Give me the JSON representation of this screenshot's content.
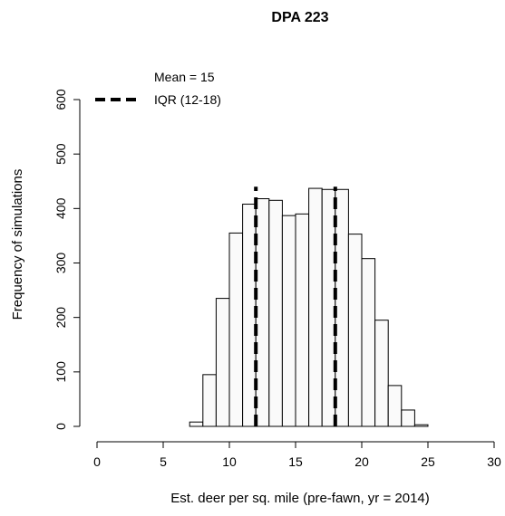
{
  "chart_data": {
    "type": "bar",
    "title": "DPA 223",
    "xlabel": "Est. deer per sq. mile (pre-fawn, yr = 2014)",
    "ylabel": "Frequency of simulations",
    "xlim": [
      0,
      30
    ],
    "ylim": [
      0,
      600
    ],
    "x_ticks": [
      "0",
      "5",
      "10",
      "15",
      "20",
      "25",
      "30"
    ],
    "y_ticks": [
      "0",
      "100",
      "200",
      "300",
      "400",
      "500",
      "600"
    ],
    "bin_width": 1,
    "bins": [
      {
        "x0": 7,
        "x1": 8,
        "count": 8
      },
      {
        "x0": 8,
        "x1": 9,
        "count": 95
      },
      {
        "x0": 9,
        "x1": 10,
        "count": 235
      },
      {
        "x0": 10,
        "x1": 11,
        "count": 355
      },
      {
        "x0": 11,
        "x1": 12,
        "count": 408
      },
      {
        "x0": 12,
        "x1": 13,
        "count": 418
      },
      {
        "x0": 13,
        "x1": 14,
        "count": 415
      },
      {
        "x0": 14,
        "x1": 15,
        "count": 387
      },
      {
        "x0": 15,
        "x1": 16,
        "count": 390
      },
      {
        "x0": 16,
        "x1": 17,
        "count": 437
      },
      {
        "x0": 17,
        "x1": 18,
        "count": 435
      },
      {
        "x0": 18,
        "x1": 19,
        "count": 435
      },
      {
        "x0": 19,
        "x1": 20,
        "count": 353
      },
      {
        "x0": 20,
        "x1": 21,
        "count": 308
      },
      {
        "x0": 21,
        "x1": 22,
        "count": 195
      },
      {
        "x0": 22,
        "x1": 23,
        "count": 75
      },
      {
        "x0": 23,
        "x1": 24,
        "count": 30
      },
      {
        "x0": 24,
        "x1": 25,
        "count": 3
      }
    ],
    "mean": 15,
    "iqr": [
      12,
      18
    ],
    "vlines_top": 440,
    "legend": {
      "position": "top-left",
      "entries": [
        "Mean = 15",
        "IQR (12-18)"
      ]
    },
    "bar_fill": "#fafafa",
    "line_color": "#000000"
  }
}
